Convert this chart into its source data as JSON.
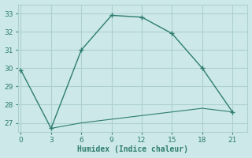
{
  "line1_x": [
    0,
    3,
    6,
    9,
    12,
    15,
    18,
    21
  ],
  "line1_y": [
    29.9,
    26.7,
    31.0,
    32.9,
    32.8,
    31.9,
    30.0,
    27.6
  ],
  "line2_x": [
    3,
    6,
    9,
    12,
    15,
    18,
    21
  ],
  "line2_y": [
    26.7,
    27.0,
    27.2,
    27.4,
    27.6,
    27.8,
    27.6
  ],
  "line_color": "#2e7d71",
  "bg_color": "#cce8e8",
  "grid_color": "#aed0d0",
  "xlabel": "Humidex (Indice chaleur)",
  "xticks": [
    0,
    3,
    6,
    9,
    12,
    15,
    18,
    21
  ],
  "yticks": [
    27,
    28,
    29,
    30,
    31,
    32,
    33
  ],
  "xlim": [
    -0.3,
    22.5
  ],
  "ylim": [
    26.5,
    33.5
  ],
  "marker": "+"
}
